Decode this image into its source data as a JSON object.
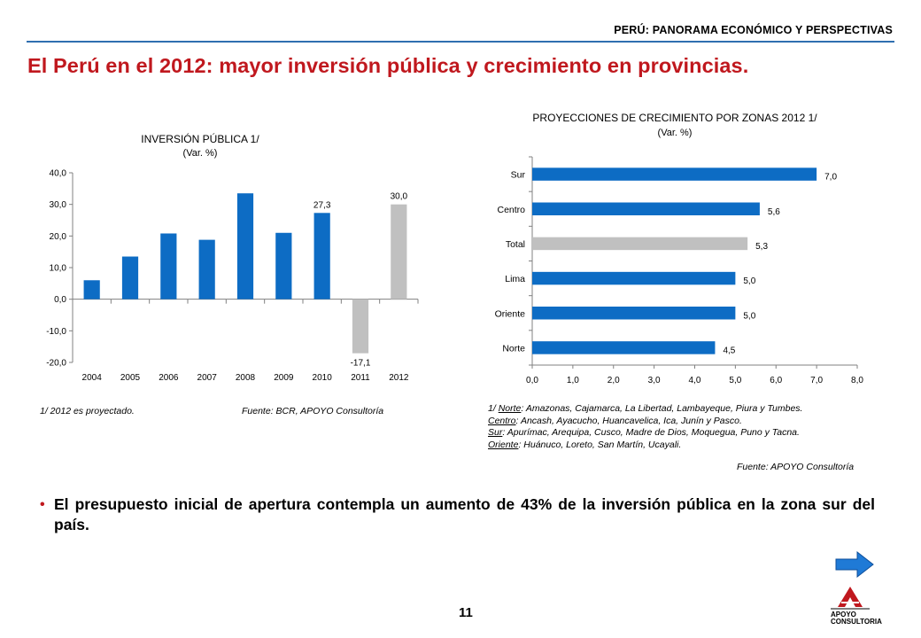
{
  "header": {
    "label": "PERÚ: PANORAMA ECONÓMICO Y PERSPECTIVAS",
    "title": "El Perú en el 2012: mayor inversión pública y crecimiento en provincias."
  },
  "colors": {
    "accent_red": "#c0181e",
    "bar_blue": "#0d6cc4",
    "bar_gray": "#c0c0c0",
    "rule_blue": "#2f6fb0"
  },
  "chart_data": [
    {
      "type": "bar",
      "title": "INVERSIÓN PÚBLICA 1/",
      "subtitle": "(Var. %)",
      "categories": [
        "2004",
        "2005",
        "2006",
        "2007",
        "2008",
        "2009",
        "2010",
        "2011",
        "2012"
      ],
      "values": [
        6.0,
        13.5,
        20.8,
        18.8,
        33.5,
        21.0,
        27.3,
        -17.1,
        30.0
      ],
      "highlighted": [
        false,
        false,
        false,
        false,
        false,
        false,
        false,
        true,
        true
      ],
      "data_labels": [
        "",
        "",
        "",
        "",
        "",
        "",
        "27,3",
        "-17,1",
        "30,0"
      ],
      "ylim": [
        -20,
        40
      ],
      "yticks": [
        "40,0",
        "30,0",
        "20,0",
        "10,0",
        "0,0",
        "-10,0",
        "-20,0"
      ],
      "ytick_values": [
        40,
        30,
        20,
        10,
        0,
        -10,
        -20
      ],
      "xlabel": "",
      "ylabel": "",
      "grid": false
    },
    {
      "type": "bar",
      "orientation": "horizontal",
      "title": "PROYECCIONES DE CRECIMIENTO POR ZONAS 2012 1/",
      "subtitle": "(Var. %)",
      "categories": [
        "Sur",
        "Centro",
        "Total",
        "Lima",
        "Oriente",
        "Norte"
      ],
      "values": [
        7.0,
        5.6,
        5.3,
        5.0,
        5.0,
        4.5
      ],
      "highlighted": [
        false,
        false,
        true,
        false,
        false,
        false
      ],
      "data_labels": [
        "7,0",
        "5,6",
        "5,3",
        "5,0",
        "5,0",
        "4,5"
      ],
      "xlim": [
        0,
        8
      ],
      "xticks": [
        "0,0",
        "1,0",
        "2,0",
        "3,0",
        "4,0",
        "5,0",
        "6,0",
        "7,0",
        "8,0"
      ],
      "xtick_values": [
        0,
        1,
        2,
        3,
        4,
        5,
        6,
        7,
        8
      ],
      "xlabel": "",
      "ylabel": "",
      "grid": false
    }
  ],
  "chart1_notes": {
    "footnote": "1/ 2012 es proyectado.",
    "source": "Fuente: BCR, APOYO Consultoría"
  },
  "chart2_notes": {
    "lines": [
      {
        "prefix": "1/ ",
        "zone": "Norte",
        "rest": ": Amazonas, Cajamarca, La Libertad, Lambayeque, Piura y Tumbes."
      },
      {
        "prefix": "",
        "zone": "Centro",
        "rest": ": Ancash, Ayacucho, Huancavelica, Ica, Junín y Pasco."
      },
      {
        "prefix": "",
        "zone": "Sur",
        "rest": ": Apurímac, Arequipa, Cusco, Madre de Dios, Moquegua, Puno y Tacna."
      },
      {
        "prefix": "",
        "zone": "Oriente",
        "rest": ": Huánuco, Loreto, San Martín, Ucayali."
      }
    ],
    "source": "Fuente: APOYO Consultoría"
  },
  "bullet": {
    "text": "El presupuesto inicial de apertura contempla un aumento de 43% de la inversión pública en la zona sur del país."
  },
  "footer": {
    "page_number": "11",
    "logo_line1": "APOYO",
    "logo_line2": "CONSULTORIA",
    "next_icon": "right-arrow-icon"
  }
}
